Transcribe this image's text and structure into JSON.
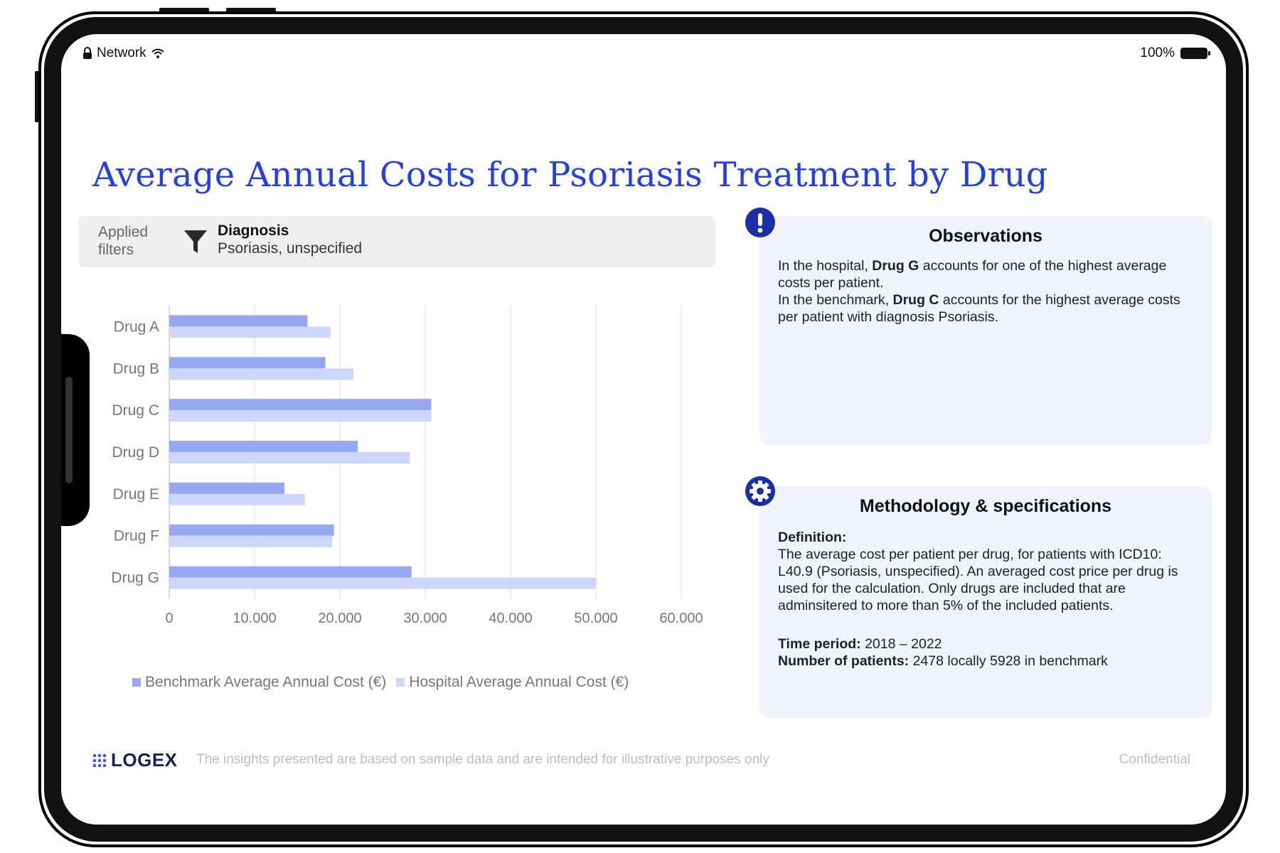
{
  "status_bar": {
    "network_label": "Network",
    "battery_label": "100%"
  },
  "page": {
    "title": "Average Annual Costs for Psoriasis Treatment by Drug"
  },
  "filters": {
    "label": "Applied filters",
    "name": "Diagnosis",
    "value": "Psoriasis, unspecified"
  },
  "chart_data": {
    "type": "bar",
    "orientation": "horizontal",
    "categories": [
      "Drug A",
      "Drug B",
      "Drug C",
      "Drug D",
      "Drug E",
      "Drug F",
      "Drug G"
    ],
    "series": [
      {
        "name": "Benchmark Average Annual Cost (€)",
        "color": "#97a9f5",
        "values": [
          16200,
          18300,
          30700,
          22100,
          13500,
          19300,
          28400
        ]
      },
      {
        "name": "Hospital Average Annual Cost (€)",
        "color": "#cdd6fb",
        "values": [
          18900,
          21600,
          30700,
          28200,
          15900,
          19100,
          50000
        ]
      }
    ],
    "x_ticks": [
      "0",
      "10.000",
      "20.000",
      "30.000",
      "40.000",
      "50.000",
      "60.000"
    ],
    "xlim": [
      0,
      60000
    ],
    "grid": true,
    "legend_position": "bottom"
  },
  "observations": {
    "title": "Observations",
    "line1_prefix": "In the hospital, ",
    "line1_bold": "Drug G",
    "line1_suffix": " accounts for one of the highest average costs per patient.",
    "line2_prefix": "In the benchmark, ",
    "line2_bold": "Drug C",
    "line2_suffix": " accounts for the highest average costs per patient with diagnosis Psoriasis."
  },
  "methodology": {
    "title": "Methodology & specifications",
    "definition_label": "Definition:",
    "definition_text": "The average cost per patient per drug, for patients with ICD10: L40.9 (Psoriasis, unspecified). An averaged cost price per drug is used for the calculation. Only drugs are included that are adminsitered to more than 5% of the included patients.",
    "time_label": "Time period:",
    "time_value": " 2018 – 2022",
    "patients_label": "Number of patients:",
    "patients_value": " 2478 locally 5928 in benchmark"
  },
  "footer": {
    "logo_text": "LOGEX",
    "note": "The insights presented are based on sample data and are intended for illustrative purposes only",
    "confidential": "Confidential"
  },
  "icons": {
    "lock": "lock-icon",
    "wifi": "wifi-icon",
    "battery": "battery-icon",
    "filter": "filter-icon",
    "observations": "exclamation-icon",
    "methodology": "gear-icon",
    "logo": "dots-grid-icon"
  }
}
